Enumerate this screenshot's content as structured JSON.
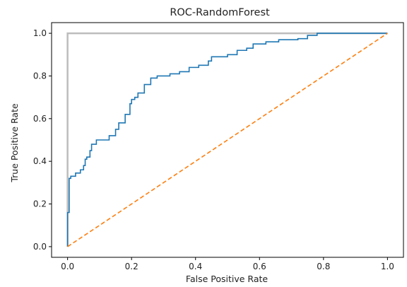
{
  "chart_data": {
    "type": "line",
    "title": "ROC-RandomForest",
    "xlabel": "False Positive Rate",
    "ylabel": "True Positive Rate",
    "xlim": [
      -0.05,
      1.05
    ],
    "ylim": [
      -0.05,
      1.05
    ],
    "x_ticks": [
      "0.0",
      "0.2",
      "0.4",
      "0.6",
      "0.8",
      "1.0"
    ],
    "y_ticks": [
      "0.0",
      "0.2",
      "0.4",
      "0.6",
      "0.8",
      "1.0"
    ],
    "grid": false,
    "legend": "none",
    "series": [
      {
        "color": "#bdbdbd",
        "style": "solid",
        "x": [
          0,
          0,
          1
        ],
        "y": [
          0,
          1,
          1
        ]
      },
      {
        "color": "#1f77b4",
        "style": "solid",
        "x": [
          0,
          0,
          0.005,
          0.005,
          0.01,
          0.01,
          0.025,
          0.025,
          0.04,
          0.04,
          0.05,
          0.05,
          0.055,
          0.055,
          0.06,
          0.06,
          0.07,
          0.07,
          0.075,
          0.075,
          0.09,
          0.09,
          0.13,
          0.13,
          0.15,
          0.15,
          0.16,
          0.16,
          0.18,
          0.18,
          0.195,
          0.195,
          0.2,
          0.2,
          0.21,
          0.21,
          0.22,
          0.22,
          0.24,
          0.24,
          0.26,
          0.26,
          0.28,
          0.28,
          0.32,
          0.32,
          0.35,
          0.35,
          0.38,
          0.38,
          0.41,
          0.41,
          0.44,
          0.44,
          0.45,
          0.45,
          0.5,
          0.5,
          0.53,
          0.53,
          0.56,
          0.56,
          0.58,
          0.58,
          0.62,
          0.62,
          0.66,
          0.66,
          0.72,
          0.72,
          0.75,
          0.75,
          0.78,
          0.78,
          1.0
        ],
        "y": [
          0,
          0.16,
          0.16,
          0.32,
          0.32,
          0.33,
          0.33,
          0.345,
          0.345,
          0.36,
          0.36,
          0.38,
          0.38,
          0.41,
          0.41,
          0.42,
          0.42,
          0.45,
          0.45,
          0.48,
          0.48,
          0.5,
          0.5,
          0.52,
          0.52,
          0.55,
          0.55,
          0.58,
          0.58,
          0.62,
          0.62,
          0.67,
          0.67,
          0.69,
          0.69,
          0.7,
          0.7,
          0.72,
          0.72,
          0.76,
          0.76,
          0.79,
          0.79,
          0.8,
          0.8,
          0.81,
          0.81,
          0.82,
          0.82,
          0.84,
          0.84,
          0.85,
          0.85,
          0.87,
          0.87,
          0.89,
          0.89,
          0.9,
          0.9,
          0.92,
          0.92,
          0.93,
          0.93,
          0.95,
          0.95,
          0.96,
          0.96,
          0.97,
          0.97,
          0.975,
          0.975,
          0.99,
          0.99,
          1.0,
          1.0
        ]
      },
      {
        "color": "#ff7f0e",
        "style": "dashed",
        "x": [
          0,
          1
        ],
        "y": [
          0,
          1
        ]
      }
    ]
  }
}
